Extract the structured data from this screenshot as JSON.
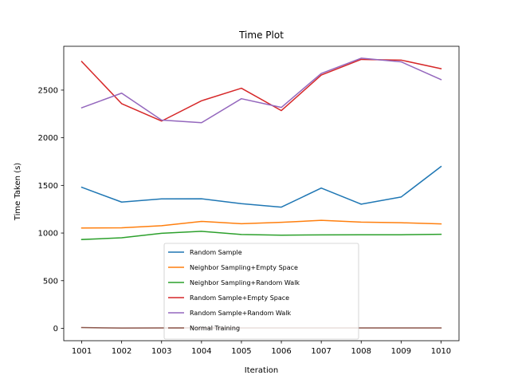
{
  "chart_data": {
    "type": "line",
    "title": "Time Plot",
    "xlabel": "Iteration",
    "ylabel": "Time Taken (s)",
    "x": [
      1001,
      1002,
      1003,
      1004,
      1005,
      1006,
      1007,
      1008,
      1009,
      1010
    ],
    "x_ticks": [
      "1001",
      "1002",
      "1003",
      "1004",
      "1005",
      "1006",
      "1007",
      "1008",
      "1009",
      "1010"
    ],
    "y_ticks": [
      0,
      500,
      1000,
      1500,
      2000,
      2500
    ],
    "xlim": [
      1000.55,
      1010.45
    ],
    "ylim": [
      -130,
      2960
    ],
    "grid": false,
    "legend_position": "lower-center",
    "series": [
      {
        "name": "Random Sample",
        "color": "#1f77b4",
        "values": [
          1480,
          1325,
          1358,
          1360,
          1308,
          1272,
          1472,
          1303,
          1378,
          1698
        ]
      },
      {
        "name": "Neighbor Sampling+Empty Space",
        "color": "#ff7f0e",
        "values": [
          1053,
          1055,
          1077,
          1122,
          1098,
          1112,
          1133,
          1115,
          1108,
          1096
        ]
      },
      {
        "name": "Neighbor Sampling+Random Walk",
        "color": "#2ca02c",
        "values": [
          932,
          950,
          997,
          1018,
          985,
          978,
          981,
          982,
          982,
          987
        ]
      },
      {
        "name": "Random Sample+Empty Space",
        "color": "#d62728",
        "values": [
          2800,
          2358,
          2175,
          2388,
          2520,
          2285,
          2658,
          2822,
          2815,
          2725
        ]
      },
      {
        "name": "Random Sample+Random Walk",
        "color": "#9467bd",
        "values": [
          2315,
          2468,
          2185,
          2158,
          2410,
          2318,
          2675,
          2835,
          2797,
          2610
        ]
      },
      {
        "name": "Normal Training",
        "color": "#8c564b",
        "values": [
          8,
          3,
          4,
          5,
          4,
          4,
          4,
          4,
          4,
          4
        ]
      }
    ]
  }
}
